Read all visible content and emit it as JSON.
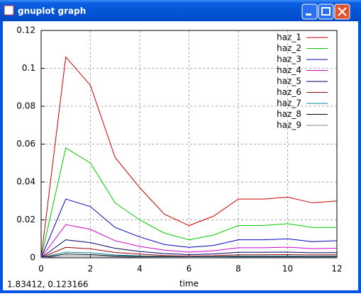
{
  "window": {
    "title": "gnuplot graph"
  },
  "status": "1.83412,  0.123166",
  "chart_data": {
    "type": "line",
    "xlabel": "time",
    "x": [
      0,
      1,
      2,
      3,
      4,
      5,
      6,
      7,
      8,
      9,
      10,
      11,
      12
    ],
    "xlim": [
      0,
      12
    ],
    "xticks": [
      0,
      2,
      4,
      6,
      8,
      10,
      12
    ],
    "ylim": [
      0,
      0.12
    ],
    "yticks": [
      0,
      0.02,
      0.04,
      0.06,
      0.08,
      0.1,
      0.12
    ],
    "grid": true,
    "legend": "top-right",
    "series": [
      {
        "name": "haz_1",
        "color": "#cc0000",
        "values": [
          0,
          0.106,
          0.091,
          0.053,
          0.037,
          0.023,
          0.017,
          0.022,
          0.031,
          0.031,
          0.032,
          0.029,
          0.03
        ]
      },
      {
        "name": "haz_2",
        "color": "#00cc00",
        "values": [
          0,
          0.058,
          0.05,
          0.029,
          0.02,
          0.013,
          0.0095,
          0.012,
          0.017,
          0.017,
          0.018,
          0.016,
          0.016
        ]
      },
      {
        "name": "haz_3",
        "color": "#0000bb",
        "values": [
          0,
          0.031,
          0.027,
          0.016,
          0.011,
          0.007,
          0.0055,
          0.0065,
          0.0095,
          0.0095,
          0.01,
          0.0085,
          0.009
        ]
      },
      {
        "name": "haz_4",
        "color": "#cc00cc",
        "values": [
          0,
          0.0175,
          0.015,
          0.009,
          0.006,
          0.004,
          0.003,
          0.0037,
          0.0053,
          0.0053,
          0.0056,
          0.0048,
          0.005
        ]
      },
      {
        "name": "haz_5",
        "color": "#000060",
        "values": [
          0,
          0.0095,
          0.008,
          0.005,
          0.0033,
          0.0022,
          0.0017,
          0.002,
          0.0029,
          0.0029,
          0.003,
          0.0026,
          0.0027
        ]
      },
      {
        "name": "haz_6",
        "color": "#990000",
        "values": [
          0,
          0.0055,
          0.0047,
          0.0028,
          0.0019,
          0.0012,
          0.0009,
          0.0011,
          0.0016,
          0.0016,
          0.0017,
          0.0015,
          0.0016
        ]
      },
      {
        "name": "haz_7",
        "color": "#0090a8",
        "values": [
          0,
          0.003,
          0.0026,
          0.0015,
          0.001,
          0.0007,
          0.0005,
          0.0006,
          0.0009,
          0.0009,
          0.0009,
          0.0008,
          0.0009
        ]
      },
      {
        "name": "haz_8",
        "color": "#000000",
        "values": [
          0,
          0.002,
          0.0017,
          0.001,
          0.0007,
          0.0005,
          0.0003,
          0.0004,
          0.0006,
          0.0006,
          0.0006,
          0.0005,
          0.0006
        ]
      },
      {
        "name": "haz_9",
        "color": "#8080a0",
        "values": [
          0,
          0.001,
          0.0009,
          0.0005,
          0.0003,
          0.0002,
          0.0002,
          0.0002,
          0.0003,
          0.0003,
          0.0003,
          0.0003,
          0.0003
        ]
      }
    ]
  }
}
